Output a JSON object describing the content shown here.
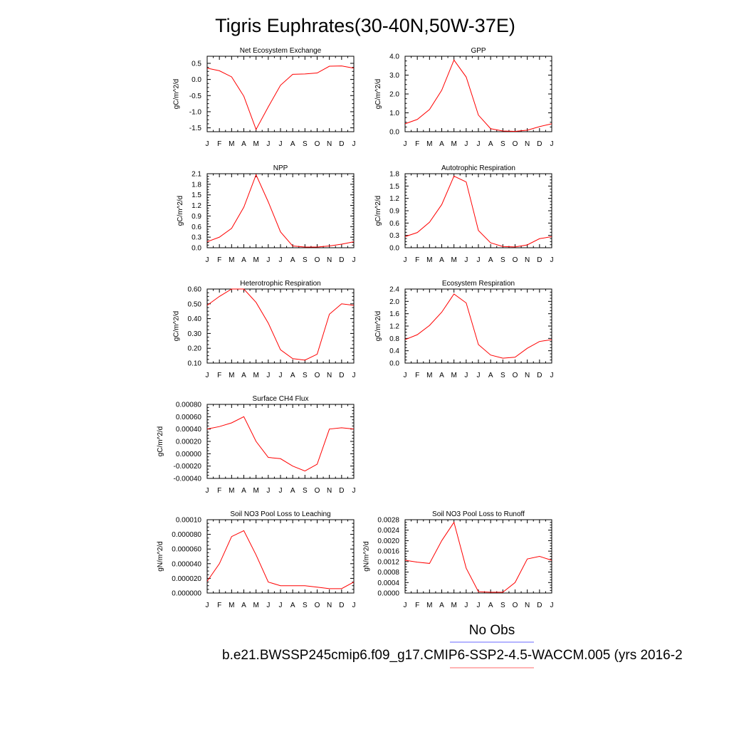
{
  "title": "Tigris Euphrates(30-40N,50W-37E)",
  "legend": {
    "no_obs_label": "No Obs",
    "run_label": "b.e21.BWSSP245cmip6.f09_g17.CMIP6-SSP2-4.5-WACCM.005 (yrs 2016-2",
    "obs_color": "#6a6aff",
    "run_color": "#ff6a6a"
  },
  "line_color": "#ff0000",
  "months": [
    "J",
    "F",
    "M",
    "A",
    "M",
    "J",
    "J",
    "A",
    "S",
    "O",
    "N",
    "D",
    "J"
  ],
  "chart_data": [
    {
      "type": "line",
      "title": "Net Ecosystem Exchange",
      "ylabel": "gC/m^2/d",
      "ylim": [
        -1.62,
        0.72
      ],
      "yticks": [
        "0.5",
        "0.0",
        "-0.5",
        "-1.0",
        "-1.5"
      ],
      "ytick_values": [
        0.5,
        0.0,
        -0.5,
        -1.0,
        -1.5
      ],
      "values": [
        0.35,
        0.27,
        0.08,
        -0.52,
        -1.55,
        -0.85,
        -0.18,
        0.16,
        0.17,
        0.2,
        0.41,
        0.42,
        0.35
      ]
    },
    {
      "type": "line",
      "title": "GPP",
      "ylabel": "gC/m^2/d",
      "ylim": [
        0.0,
        4.0
      ],
      "yticks": [
        "4.0",
        "3.0",
        "2.0",
        "1.0",
        "0.0"
      ],
      "ytick_values": [
        4.0,
        3.0,
        2.0,
        1.0,
        0.0
      ],
      "values": [
        0.42,
        0.65,
        1.18,
        2.2,
        3.8,
        2.9,
        0.88,
        0.16,
        0.04,
        0.02,
        0.08,
        0.27,
        0.42
      ]
    },
    {
      "type": "line",
      "title": "NPP",
      "ylabel": "gC/m^2/d",
      "ylim": [
        0.0,
        2.1
      ],
      "yticks": [
        "2.1",
        "1.8",
        "1.5",
        "1.2",
        "0.9",
        "0.6",
        "0.3",
        "0.0"
      ],
      "ytick_values": [
        2.1,
        1.8,
        1.5,
        1.2,
        0.9,
        0.6,
        0.3,
        0.0
      ],
      "values": [
        0.17,
        0.3,
        0.55,
        1.15,
        2.07,
        1.3,
        0.45,
        0.05,
        0.02,
        0.02,
        0.05,
        0.1,
        0.17
      ]
    },
    {
      "type": "line",
      "title": "Autotrophic Respiration",
      "ylabel": "gC/m^2/d",
      "ylim": [
        0.0,
        1.8
      ],
      "yticks": [
        "1.8",
        "1.5",
        "1.2",
        "0.9",
        "0.6",
        "0.3",
        "0.0"
      ],
      "ytick_values": [
        1.8,
        1.5,
        1.2,
        0.9,
        0.6,
        0.3,
        0.0
      ],
      "values": [
        0.27,
        0.37,
        0.62,
        1.05,
        1.74,
        1.6,
        0.42,
        0.12,
        0.03,
        0.02,
        0.07,
        0.22,
        0.27
      ]
    },
    {
      "type": "line",
      "title": "Heterotrophic Respiration",
      "ylabel": "gC/m^2/d",
      "ylim": [
        0.1,
        0.6
      ],
      "yticks": [
        "0.60",
        "0.50",
        "0.40",
        "0.30",
        "0.20",
        "0.10"
      ],
      "ytick_values": [
        0.6,
        0.5,
        0.4,
        0.3,
        0.2,
        0.1
      ],
      "values": [
        0.49,
        0.55,
        0.6,
        0.6,
        0.51,
        0.37,
        0.19,
        0.13,
        0.12,
        0.16,
        0.43,
        0.5,
        0.49
      ]
    },
    {
      "type": "line",
      "title": "Ecosystem Respiration",
      "ylabel": "gC/m^2/d",
      "ylim": [
        0.0,
        2.4
      ],
      "yticks": [
        "2.4",
        "2.0",
        "1.6",
        "1.2",
        "0.8",
        "0.4",
        "0.0"
      ],
      "ytick_values": [
        2.4,
        2.0,
        1.6,
        1.2,
        0.8,
        0.4,
        0.0
      ],
      "values": [
        0.76,
        0.92,
        1.22,
        1.65,
        2.24,
        1.95,
        0.6,
        0.26,
        0.16,
        0.19,
        0.48,
        0.7,
        0.76
      ]
    },
    {
      "type": "line",
      "title": "Surface CH4 Flux",
      "ylabel": "gC/m^2/d",
      "ylim": [
        -0.0004,
        0.0008
      ],
      "yticks": [
        "0.00080",
        "0.00060",
        "0.00040",
        "0.00020",
        "0.00000",
        "-0.00020",
        "-0.00040"
      ],
      "ytick_values": [
        0.0008,
        0.0006,
        0.0004,
        0.0002,
        0.0,
        -0.0002,
        -0.0004
      ],
      "values": [
        0.0004,
        0.00044,
        0.0005,
        0.0006,
        0.0002,
        -6e-05,
        -8e-05,
        -0.0002,
        -0.00028,
        -0.00017,
        0.0004,
        0.00042,
        0.0004
      ]
    },
    {
      "type": "line",
      "title": "Soil NO3 Pool Loss to Leaching",
      "ylabel": "gN/m^2/d",
      "ylim": [
        0.0,
        0.0001
      ],
      "yticks": [
        "0.00010",
        "0.000080",
        "0.000060",
        "0.000040",
        "0.000020",
        "0.000000"
      ],
      "ytick_values": [
        0.0001,
        8e-05,
        6e-05,
        4e-05,
        2e-05,
        0.0
      ],
      "values": [
        1.6e-05,
        4e-05,
        7.7e-05,
        8.5e-05,
        5.2e-05,
        1.5e-05,
        1e-05,
        1e-05,
        1e-05,
        8e-06,
        6e-06,
        6e-06,
        1.5e-05
      ]
    },
    {
      "type": "line",
      "title": "Soil NO3 Pool Loss to Runoff",
      "ylabel": "gN/m^2/d",
      "ylim": [
        0.0,
        0.0028
      ],
      "yticks": [
        "0.0028",
        "0.0024",
        "0.0020",
        "0.0016",
        "0.0012",
        "0.0008",
        "0.0004",
        "0.0000"
      ],
      "ytick_values": [
        0.0028,
        0.0024,
        0.002,
        0.0016,
        0.0012,
        0.0008,
        0.0004,
        0.0
      ],
      "values": [
        0.00125,
        0.00118,
        0.00113,
        0.002,
        0.0027,
        0.00095,
        5e-05,
        3e-05,
        3e-05,
        0.0004,
        0.0013,
        0.0014,
        0.00125
      ]
    }
  ]
}
